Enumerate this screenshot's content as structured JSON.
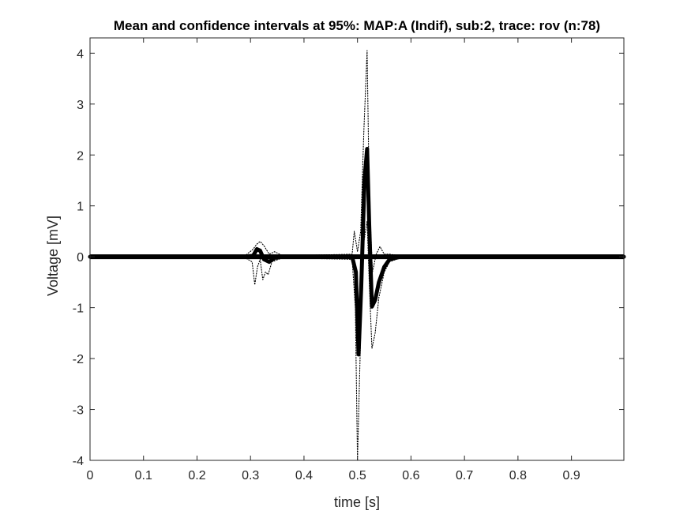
{
  "chart_data": {
    "type": "line",
    "title": "Mean and confidence intervals at 95%: MAP:A (Indif), sub:2, trace: rov (n:78)",
    "xlabel": "time [s]",
    "ylabel": "Voltage [mV]",
    "xlim": [
      0,
      0.998
    ],
    "ylim": [
      -4,
      4.3
    ],
    "xticks": [
      0,
      0.1,
      0.2,
      0.3,
      0.4,
      0.5,
      0.6,
      0.7,
      0.8,
      0.9
    ],
    "xtick_labels": [
      "0",
      "0.1",
      "0.2",
      "0.3",
      "0.4",
      "0.5",
      "0.6",
      "0.7",
      "0.8",
      "0.9"
    ],
    "yticks": [
      -4,
      -3,
      -2,
      -1,
      0,
      1,
      2,
      3,
      4
    ],
    "ytick_labels": [
      "-4",
      "-3",
      "-2",
      "-1",
      "0",
      "1",
      "2",
      "3",
      "4"
    ],
    "grid": false,
    "legend": "none",
    "colors": {
      "line": "#000000",
      "axis": "#262626",
      "background": "#ffffff"
    },
    "series": [
      {
        "style": "solid-thick",
        "x": [
          0,
          0.29,
          0.305,
          0.312,
          0.318,
          0.325,
          0.335,
          0.345,
          0.36,
          0.49,
          0.497,
          0.502,
          0.507,
          0.513,
          0.518,
          0.522,
          0.527,
          0.533,
          0.54,
          0.55,
          0.56,
          0.58,
          0.998
        ],
        "y": [
          0,
          0,
          0.02,
          0.15,
          0.12,
          -0.05,
          -0.1,
          -0.02,
          0,
          0,
          -0.3,
          -1.92,
          -0.6,
          1.5,
          2.12,
          0.6,
          -0.98,
          -0.85,
          -0.5,
          -0.2,
          -0.05,
          0,
          0
        ]
      },
      {
        "style": "dotted-upper",
        "x": [
          0,
          0.29,
          0.305,
          0.312,
          0.318,
          0.325,
          0.335,
          0.345,
          0.36,
          0.49,
          0.494,
          0.5,
          0.506,
          0.512,
          0.518,
          0.522,
          0.528,
          0.535,
          0.542,
          0.55,
          0.56,
          0.58,
          0.998
        ],
        "y": [
          0.02,
          0.02,
          0.15,
          0.25,
          0.3,
          0.22,
          0.05,
          0.1,
          0.02,
          0.05,
          0.5,
          0.1,
          0.5,
          2.5,
          4.05,
          1.2,
          -0.3,
          0.05,
          0.2,
          0.05,
          0.05,
          0.02,
          0.02
        ]
      },
      {
        "style": "dotted-lower",
        "x": [
          0,
          0.29,
          0.303,
          0.308,
          0.313,
          0.318,
          0.323,
          0.328,
          0.333,
          0.34,
          0.36,
          0.49,
          0.496,
          0.5,
          0.506,
          0.512,
          0.518,
          0.522,
          0.527,
          0.533,
          0.54,
          0.55,
          0.56,
          0.58,
          0.998
        ],
        "y": [
          -0.02,
          -0.02,
          -0.1,
          -0.55,
          -0.2,
          -0.05,
          -0.45,
          -0.3,
          -0.35,
          -0.1,
          -0.02,
          -0.05,
          -1.0,
          -4.0,
          -1.5,
          0.3,
          0.7,
          -0.5,
          -1.8,
          -1.5,
          -0.8,
          -0.3,
          -0.1,
          -0.02,
          -0.02
        ]
      }
    ]
  }
}
